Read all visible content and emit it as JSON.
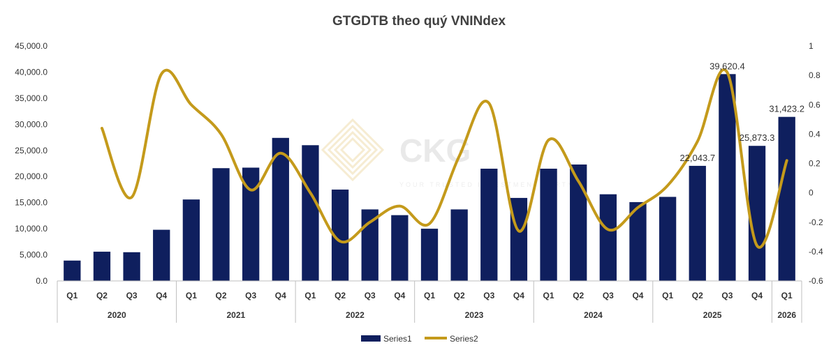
{
  "chart_data": {
    "type": "bar",
    "title": "GTGDTB theo quý VNINdex",
    "watermark": {
      "brand": "CKG",
      "tagline": "YOUR TRUSTED INVESTMENT PARTNER"
    },
    "categories": [
      "Q1",
      "Q2",
      "Q3",
      "Q4",
      "Q1",
      "Q2",
      "Q3",
      "Q4",
      "Q1",
      "Q2",
      "Q3",
      "Q4",
      "Q1",
      "Q2",
      "Q3",
      "Q4",
      "Q1",
      "Q2",
      "Q3",
      "Q4",
      "Q1",
      "Q2",
      "Q3",
      "Q4",
      "Q1"
    ],
    "year_groups": [
      {
        "label": "2020",
        "span": 4
      },
      {
        "label": "2021",
        "span": 4
      },
      {
        "label": "2022",
        "span": 4
      },
      {
        "label": "2023",
        "span": 4
      },
      {
        "label": "2024",
        "span": 4
      },
      {
        "label": "2025",
        "span": 4
      },
      {
        "label": "2026",
        "span": 1
      }
    ],
    "series": [
      {
        "name": "Series1",
        "type": "bar",
        "axis": "left",
        "color": "#0f1f5e",
        "values": [
          3900,
          5600,
          5500,
          9800,
          15600,
          21600,
          21700,
          27400,
          26000,
          17500,
          13700,
          12600,
          10000,
          13700,
          21500,
          15900,
          21500,
          22300,
          16600,
          15100,
          16100,
          22043.7,
          39620.4,
          25873.3,
          31423.2
        ],
        "data_labels": [
          null,
          null,
          null,
          null,
          null,
          null,
          null,
          null,
          null,
          null,
          null,
          null,
          null,
          null,
          null,
          null,
          null,
          null,
          null,
          null,
          null,
          "22,043.7",
          "39,620.4",
          "25,873.3",
          "31,423.2"
        ]
      },
      {
        "name": "Series2",
        "type": "line",
        "axis": "right",
        "color": "#c49a1b",
        "values": [
          null,
          0.44,
          -0.03,
          0.81,
          0.6,
          0.4,
          0.02,
          0.27,
          0.0,
          -0.33,
          -0.2,
          -0.09,
          -0.21,
          0.25,
          0.61,
          -0.26,
          0.36,
          0.08,
          -0.25,
          -0.1,
          0.05,
          0.35,
          0.82,
          -0.36,
          0.22
        ]
      }
    ],
    "y_left": {
      "min": 0,
      "max": 45000,
      "step": 5000,
      "ticks": [
        "0.0",
        "5,000.0",
        "10,000.0",
        "15,000.0",
        "20,000.0",
        "25,000.0",
        "30,000.0",
        "35,000.0",
        "40,000.0",
        "45,000.0"
      ]
    },
    "y_right": {
      "min": -0.6,
      "max": 1,
      "step": 0.2,
      "ticks": [
        "-0.6",
        "-0.4",
        "-0.2",
        "0",
        "0.2",
        "0.4",
        "0.6",
        "0.8",
        "1"
      ]
    },
    "grid": false,
    "legend": {
      "position": "bottom",
      "entries": [
        "Series1",
        "Series2"
      ]
    }
  }
}
